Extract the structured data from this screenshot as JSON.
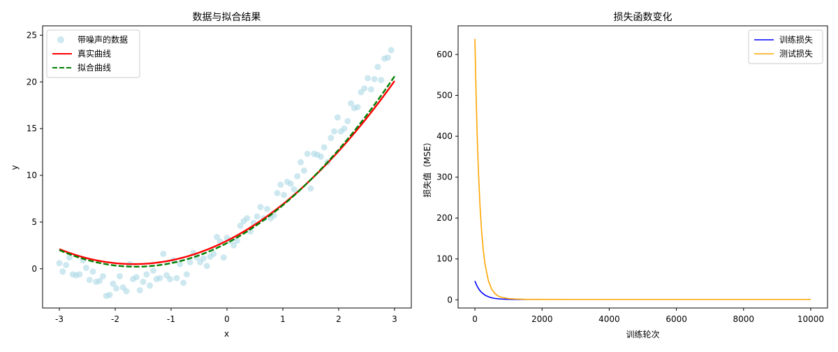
{
  "chart_data": [
    {
      "type": "scatter",
      "title": "数据与拟合结果",
      "xlabel": "x",
      "ylabel": "y",
      "xlim": [
        -3.3,
        3.3
      ],
      "ylim": [
        -4.2,
        26.0
      ],
      "xticks": [
        -3,
        -2,
        -1,
        0,
        1,
        2,
        3
      ],
      "xtick_labels": [
        "-3",
        "-2",
        "-1",
        "0",
        "1",
        "2",
        "3"
      ],
      "yticks": [
        0,
        5,
        10,
        15,
        20,
        25
      ],
      "ytick_labels": [
        "0",
        "5",
        "10",
        "15",
        "20",
        "25"
      ],
      "grid": false,
      "legend_position": "top-left",
      "series": [
        {
          "name": "带噪声的数据",
          "kind": "scatter",
          "color": "#add8e6",
          "points": [
            [
              -3.0,
              0.6
            ],
            [
              -2.94,
              -0.3
            ],
            [
              -2.88,
              0.4
            ],
            [
              -2.82,
              1.2
            ],
            [
              -2.76,
              -0.6
            ],
            [
              -2.7,
              -0.7
            ],
            [
              -2.64,
              -0.6
            ],
            [
              -2.58,
              0.9
            ],
            [
              -2.52,
              0.1
            ],
            [
              -2.46,
              -1.2
            ],
            [
              -2.4,
              -0.3
            ],
            [
              -2.34,
              -1.4
            ],
            [
              -2.28,
              -1.3
            ],
            [
              -2.22,
              -0.8
            ],
            [
              -2.16,
              -2.9
            ],
            [
              -2.1,
              -2.8
            ],
            [
              -2.04,
              -1.6
            ],
            [
              -1.98,
              -2.1
            ],
            [
              -1.92,
              -0.8
            ],
            [
              -1.86,
              -2.0
            ],
            [
              -1.8,
              -2.4
            ],
            [
              -1.74,
              0.5
            ],
            [
              -1.68,
              -1.1
            ],
            [
              -1.62,
              -0.9
            ],
            [
              -1.56,
              -2.3
            ],
            [
              -1.5,
              -1.4
            ],
            [
              -1.44,
              -0.6
            ],
            [
              -1.38,
              -1.8
            ],
            [
              -1.32,
              -0.2
            ],
            [
              -1.26,
              -1.1
            ],
            [
              -1.2,
              -1.0
            ],
            [
              -1.14,
              1.6
            ],
            [
              -1.08,
              -0.7
            ],
            [
              -1.02,
              -1.1
            ],
            [
              -0.96,
              0.9
            ],
            [
              -0.9,
              -1.0
            ],
            [
              -0.84,
              0.5
            ],
            [
              -0.78,
              -1.5
            ],
            [
              -0.72,
              -0.6
            ],
            [
              -0.66,
              0.7
            ],
            [
              -0.6,
              1.7
            ],
            [
              -0.54,
              1.2
            ],
            [
              -0.48,
              0.7
            ],
            [
              -0.42,
              1.1
            ],
            [
              -0.36,
              0.3
            ],
            [
              -0.3,
              1.3
            ],
            [
              -0.24,
              1.6
            ],
            [
              -0.18,
              3.4
            ],
            [
              -0.12,
              2.9
            ],
            [
              -0.06,
              1.2
            ],
            [
              0.0,
              3.3
            ],
            [
              0.06,
              3.0
            ],
            [
              0.12,
              2.5
            ],
            [
              0.18,
              3.0
            ],
            [
              0.24,
              4.6
            ],
            [
              0.3,
              5.1
            ],
            [
              0.36,
              5.4
            ],
            [
              0.42,
              4.0
            ],
            [
              0.48,
              4.9
            ],
            [
              0.54,
              5.6
            ],
            [
              0.6,
              6.6
            ],
            [
              0.66,
              5.4
            ],
            [
              0.72,
              6.4
            ],
            [
              0.78,
              5.4
            ],
            [
              0.84,
              5.7
            ],
            [
              0.9,
              8.1
            ],
            [
              0.96,
              9.0
            ],
            [
              1.02,
              7.9
            ],
            [
              1.08,
              9.3
            ],
            [
              1.14,
              9.1
            ],
            [
              1.2,
              8.5
            ],
            [
              1.26,
              9.9
            ],
            [
              1.32,
              11.4
            ],
            [
              1.38,
              10.5
            ],
            [
              1.44,
              12.3
            ],
            [
              1.5,
              8.6
            ],
            [
              1.56,
              12.3
            ],
            [
              1.62,
              12.2
            ],
            [
              1.68,
              12.0
            ],
            [
              1.74,
              13.0
            ],
            [
              1.8,
              11.4
            ],
            [
              1.86,
              14.0
            ],
            [
              1.92,
              14.7
            ],
            [
              1.98,
              16.2
            ],
            [
              2.04,
              14.7
            ],
            [
              2.1,
              15.0
            ],
            [
              2.16,
              15.8
            ],
            [
              2.22,
              17.7
            ],
            [
              2.28,
              17.2
            ],
            [
              2.34,
              17.3
            ],
            [
              2.4,
              18.9
            ],
            [
              2.46,
              19.3
            ],
            [
              2.52,
              20.4
            ],
            [
              2.58,
              19.2
            ],
            [
              2.64,
              20.3
            ],
            [
              2.7,
              21.6
            ],
            [
              2.76,
              20.2
            ],
            [
              2.82,
              22.5
            ],
            [
              2.88,
              22.6
            ],
            [
              2.94,
              23.4
            ]
          ]
        },
        {
          "name": "真实曲线",
          "kind": "line",
          "color": "#ff0000",
          "dash": "solid",
          "coeffs": [
            0.9,
            3.0,
            3.0
          ]
        },
        {
          "name": "拟合曲线",
          "kind": "line",
          "color": "#008000",
          "dash": "dashed",
          "coeffs": [
            0.95,
            3.1,
            2.75
          ]
        }
      ]
    },
    {
      "type": "line",
      "title": "损失函数变化",
      "xlabel": "训练轮次",
      "ylabel": "损失值（MSE）",
      "xlim": [
        -500,
        10500
      ],
      "ylim": [
        -20,
        670
      ],
      "xticks": [
        0,
        2000,
        4000,
        6000,
        8000,
        10000
      ],
      "xtick_labels": [
        "0",
        "2000",
        "4000",
        "6000",
        "8000",
        "10000"
      ],
      "yticks": [
        0,
        100,
        200,
        300,
        400,
        500,
        600
      ],
      "ytick_labels": [
        "0",
        "100",
        "200",
        "300",
        "400",
        "500",
        "600"
      ],
      "grid": false,
      "legend_position": "top-right",
      "series": [
        {
          "name": "训练损失",
          "color": "#0000ff",
          "x": [
            0,
            50,
            100,
            150,
            200,
            300,
            400,
            500,
            600,
            800,
            1000,
            1200,
            1500,
            2000,
            3000,
            5000,
            10000
          ],
          "y": [
            46,
            36,
            28.5,
            22.5,
            18,
            11.5,
            7.5,
            5,
            3.3,
            1.8,
            1.2,
            1.0,
            0.9,
            0.9,
            0.9,
            0.9,
            0.9
          ]
        },
        {
          "name": "测试损失",
          "color": "#ffa500",
          "x": [
            0,
            25,
            50,
            75,
            100,
            150,
            200,
            250,
            300,
            400,
            500,
            600,
            700,
            800,
            1000,
            1200,
            1500,
            2000,
            3000,
            5000,
            10000
          ],
          "y": [
            638,
            540,
            455,
            385,
            325,
            232,
            168,
            121,
            88,
            47,
            26,
            15,
            9,
            6,
            3,
            2,
            1.2,
            1.0,
            0.9,
            0.9,
            0.9
          ]
        }
      ]
    }
  ]
}
